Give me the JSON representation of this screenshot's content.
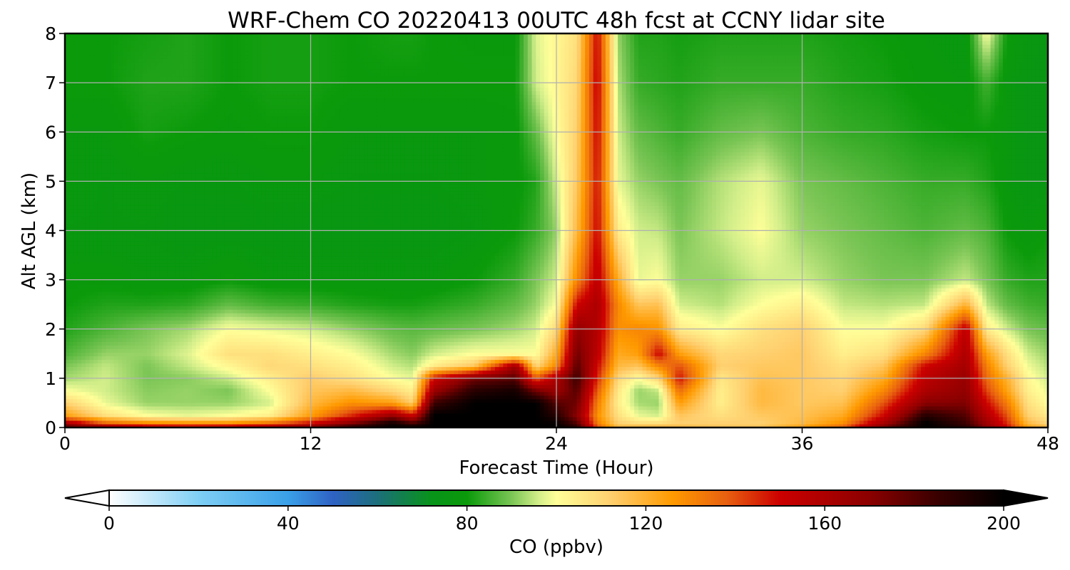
{
  "chart_data": {
    "type": "heatmap",
    "title": "WRF-Chem CO  20220413 00UTC 48h fcst at CCNY lidar site",
    "xlabel": "Forecast Time (Hour)",
    "ylabel": "Alt AGL (km)",
    "xlim": [
      0,
      48
    ],
    "ylim": [
      0,
      8
    ],
    "x_ticks": [
      "0",
      "12",
      "24",
      "36",
      "48"
    ],
    "y_ticks": [
      "0",
      "1",
      "2",
      "3",
      "4",
      "5",
      "6",
      "7",
      "8"
    ],
    "grid": true,
    "colorbar": {
      "label": "CO  (ppbv)",
      "min": 0,
      "max": 200,
      "ticks": [
        "0",
        "40",
        "80",
        "120",
        "160",
        "200"
      ],
      "extend": "both",
      "stops": [
        {
          "v": 0,
          "c": "#ffffff"
        },
        {
          "v": 20,
          "c": "#7fcff5"
        },
        {
          "v": 40,
          "c": "#3aa0e8"
        },
        {
          "v": 50,
          "c": "#2f62c4"
        },
        {
          "v": 60,
          "c": "#1c6f7a"
        },
        {
          "v": 72,
          "c": "#08931a"
        },
        {
          "v": 80,
          "c": "#0a9a0a"
        },
        {
          "v": 90,
          "c": "#7ac555"
        },
        {
          "v": 96,
          "c": "#d2ee8a"
        },
        {
          "v": 100,
          "c": "#ffff99"
        },
        {
          "v": 112,
          "c": "#ffd070"
        },
        {
          "v": 126,
          "c": "#ff9a00"
        },
        {
          "v": 138,
          "c": "#e86010"
        },
        {
          "v": 150,
          "c": "#cc0000"
        },
        {
          "v": 170,
          "c": "#8b0000"
        },
        {
          "v": 185,
          "c": "#3a0000"
        },
        {
          "v": 200,
          "c": "#000000"
        }
      ]
    },
    "times": [
      0,
      2,
      4,
      6,
      8,
      10,
      12,
      14,
      16,
      17,
      18,
      20,
      22,
      23,
      24,
      25,
      26,
      27,
      28,
      29,
      30,
      32,
      34,
      36,
      38,
      40,
      42,
      44,
      45,
      46,
      47,
      48
    ],
    "altitudes": [
      0,
      0.1,
      0.25,
      0.5,
      0.75,
      1.0,
      1.25,
      1.5,
      2.0,
      2.5,
      3.0,
      4.0,
      5.0,
      6.0,
      7.0,
      8.0
    ],
    "values": [
      [
        185,
        160,
        125,
        112,
        100,
        93,
        90,
        86,
        82,
        80,
        79,
        77,
        78,
        78,
        80,
        80
      ],
      [
        170,
        135,
        108,
        98,
        96,
        96,
        95,
        92,
        86,
        82,
        79,
        77,
        77,
        78,
        80,
        80
      ],
      [
        160,
        128,
        100,
        92,
        91,
        90,
        90,
        92,
        90,
        82,
        78,
        77,
        78,
        81,
        82,
        81
      ],
      [
        158,
        126,
        98,
        92,
        92,
        91,
        95,
        97,
        93,
        83,
        78,
        76,
        77,
        80,
        82,
        82
      ],
      [
        160,
        126,
        100,
        92,
        90,
        95,
        102,
        108,
        100,
        88,
        80,
        76,
        77,
        79,
        80,
        80
      ],
      [
        165,
        133,
        104,
        96,
        100,
        104,
        110,
        108,
        98,
        85,
        78,
        76,
        78,
        80,
        81,
        81
      ],
      [
        175,
        148,
        125,
        118,
        115,
        113,
        108,
        104,
        96,
        84,
        78,
        76,
        78,
        80,
        81,
        81
      ],
      [
        190,
        170,
        145,
        128,
        118,
        108,
        104,
        100,
        92,
        82,
        78,
        76,
        77,
        78,
        80,
        80
      ],
      [
        200,
        195,
        165,
        125,
        110,
        100,
        96,
        93,
        88,
        81,
        78,
        76,
        77,
        78,
        80,
        81
      ],
      [
        200,
        180,
        150,
        112,
        104,
        98,
        94,
        91,
        87,
        81,
        78,
        76,
        77,
        78,
        80,
        81
      ],
      [
        200,
        200,
        200,
        185,
        165,
        150,
        105,
        96,
        88,
        82,
        78,
        76,
        77,
        78,
        80,
        80
      ],
      [
        200,
        200,
        200,
        200,
        190,
        175,
        115,
        100,
        90,
        84,
        80,
        77,
        78,
        78,
        80,
        79
      ],
      [
        200,
        200,
        200,
        200,
        195,
        180,
        165,
        100,
        93,
        88,
        84,
        80,
        79,
        79,
        80,
        79
      ],
      [
        200,
        200,
        200,
        200,
        175,
        140,
        110,
        100,
        96,
        92,
        90,
        84,
        82,
        88,
        96,
        97
      ],
      [
        200,
        198,
        190,
        180,
        165,
        160,
        130,
        122,
        110,
        100,
        96,
        92,
        96,
        100,
        102,
        102
      ],
      [
        190,
        180,
        170,
        175,
        180,
        185,
        180,
        175,
        168,
        150,
        130,
        118,
        114,
        112,
        110,
        108
      ],
      [
        140,
        132,
        128,
        132,
        138,
        145,
        150,
        155,
        158,
        160,
        155,
        150,
        148,
        150,
        152,
        150
      ],
      [
        118,
        112,
        108,
        104,
        106,
        110,
        118,
        122,
        128,
        130,
        122,
        105,
        98,
        96,
        94,
        92
      ],
      [
        120,
        108,
        98,
        93,
        92,
        100,
        115,
        125,
        130,
        115,
        98,
        96,
        92,
        88,
        84,
        82
      ],
      [
        120,
        108,
        96,
        92,
        95,
        110,
        130,
        150,
        128,
        116,
        100,
        95,
        90,
        86,
        83,
        82
      ],
      [
        118,
        112,
        115,
        125,
        135,
        148,
        140,
        125,
        105,
        96,
        92,
        90,
        88,
        84,
        82,
        81
      ],
      [
        115,
        112,
        108,
        104,
        104,
        106,
        112,
        110,
        100,
        94,
        92,
        95,
        94,
        88,
        84,
        82
      ],
      [
        115,
        112,
        114,
        118,
        118,
        116,
        114,
        112,
        108,
        100,
        96,
        100,
        98,
        90,
        84,
        82
      ],
      [
        125,
        118,
        116,
        114,
        114,
        114,
        114,
        114,
        112,
        104,
        96,
        92,
        90,
        86,
        84,
        82
      ],
      [
        138,
        128,
        122,
        116,
        112,
        110,
        108,
        104,
        100,
        95,
        92,
        90,
        88,
        84,
        82,
        81
      ],
      [
        175,
        162,
        150,
        140,
        130,
        122,
        115,
        108,
        100,
        94,
        90,
        88,
        86,
        83,
        81,
        80
      ],
      [
        200,
        200,
        190,
        170,
        160,
        155,
        150,
        130,
        110,
        95,
        90,
        86,
        84,
        81,
        79,
        78
      ],
      [
        190,
        185,
        180,
        172,
        168,
        166,
        162,
        160,
        155,
        120,
        95,
        88,
        84,
        80,
        78,
        77
      ],
      [
        170,
        165,
        158,
        150,
        142,
        136,
        132,
        125,
        105,
        95,
        90,
        86,
        82,
        80,
        85,
        100
      ],
      [
        150,
        145,
        140,
        132,
        124,
        120,
        112,
        108,
        96,
        88,
        84,
        80,
        78,
        78,
        78,
        80
      ],
      [
        125,
        118,
        112,
        108,
        104,
        102,
        99,
        96,
        90,
        85,
        82,
        78,
        76,
        76,
        76,
        77
      ],
      [
        118,
        110,
        105,
        100,
        98,
        96,
        94,
        92,
        88,
        84,
        82,
        80,
        76,
        75,
        75,
        76
      ]
    ]
  }
}
